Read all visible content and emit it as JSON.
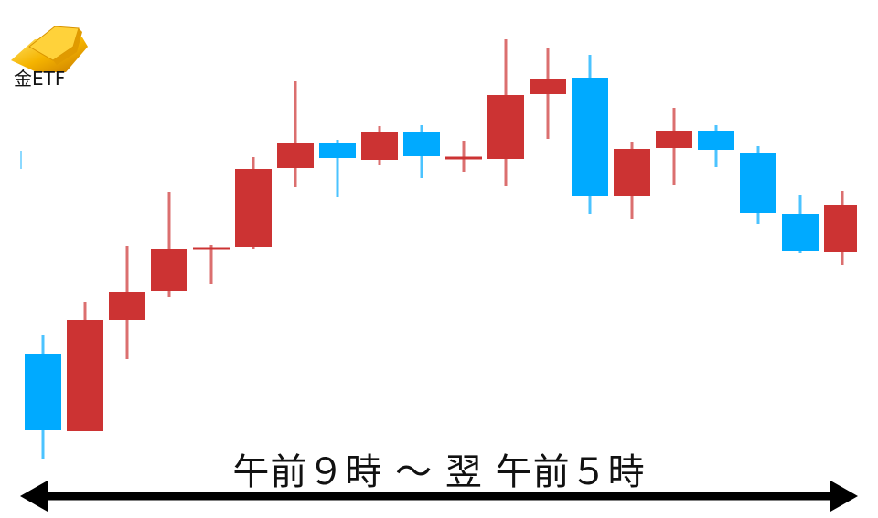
{
  "logo": {
    "label": "金ETF",
    "icon": "gold-bars-icon"
  },
  "caption": "午前９時 ～ 翌 午前５時",
  "colors": {
    "up": "#cc3333",
    "down": "#00aaff",
    "arrow": "#000000"
  },
  "chart_data": {
    "type": "candlestick",
    "title": "",
    "xlabel": "午前９時 ～ 翌 午前５時",
    "ylabel": "",
    "grid": false,
    "note_units": "relative price level (no axis printed)",
    "candles": [
      {
        "open": 133,
        "close": 49,
        "high": 153,
        "low": 18
      },
      {
        "open": 48,
        "close": 170,
        "high": 189,
        "low": 48
      },
      {
        "open": 170,
        "close": 200,
        "high": 251,
        "low": 127
      },
      {
        "open": 201,
        "close": 247,
        "high": 310,
        "low": 195
      },
      {
        "open": 248,
        "close": 248,
        "high": 252,
        "low": 209
      },
      {
        "open": 250,
        "close": 335,
        "high": 348,
        "low": 247
      },
      {
        "open": 336,
        "close": 363,
        "high": 431,
        "low": 315
      },
      {
        "open": 363,
        "close": 347,
        "high": 367,
        "low": 304
      },
      {
        "open": 345,
        "close": 375,
        "high": 382,
        "low": 339
      },
      {
        "open": 375,
        "close": 349,
        "high": 383,
        "low": 325
      },
      {
        "open": 347,
        "close": 347,
        "high": 366,
        "low": 332
      },
      {
        "open": 346,
        "close": 416,
        "high": 477,
        "low": 316
      },
      {
        "open": 417,
        "close": 434,
        "high": 467,
        "low": 368
      },
      {
        "open": 435,
        "close": 305,
        "high": 460,
        "low": 286
      },
      {
        "open": 306,
        "close": 357,
        "high": 365,
        "low": 280
      },
      {
        "open": 358,
        "close": 377,
        "high": 402,
        "low": 317
      },
      {
        "open": 377,
        "close": 356,
        "high": 383,
        "low": 337
      },
      {
        "open": 353,
        "close": 287,
        "high": 360,
        "low": 275
      },
      {
        "open": 286,
        "close": 245,
        "high": 307,
        "low": 243
      },
      {
        "open": 244,
        "close": 296,
        "high": 311,
        "low": 230
      }
    ]
  }
}
